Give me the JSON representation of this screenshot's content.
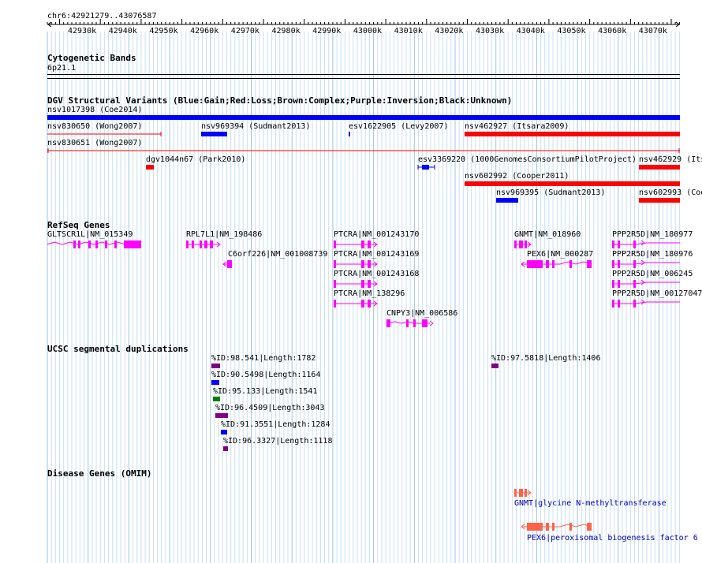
{
  "locus": "chr6:42921279..43076587",
  "ruler": {
    "ticks": [
      "42930k",
      "42940k",
      "42950k",
      "42960k",
      "42970k",
      "42980k",
      "42990k",
      "43000k",
      "43010k",
      "43020k",
      "43030k",
      "43040k",
      "43050k",
      "43060k",
      "43070k"
    ]
  },
  "tracks": {
    "cytoband": {
      "title": "Cytogenetic Bands",
      "band": "6p21.1"
    },
    "dgv": {
      "title": "DGV Structural Variants (Blue:Gain;Red:Loss;Brown:Complex;Purple:Inversion;Black:Unknown)",
      "features": [
        {
          "label": "nsv1017398 (Coe2014)",
          "color": "#0000ff"
        },
        {
          "label": "nsv830650 (Wong2007)",
          "color": "#ff0000"
        },
        {
          "label": "nsv969394 (Sudmant2013)",
          "color": "#0000ff"
        },
        {
          "label": "esv1622905 (Levy2007)",
          "color": "#0000ff"
        },
        {
          "label": "nsv462927 (Itsara2009)",
          "color": "#ff0000"
        },
        {
          "label": "nsv830651 (Wong2007)",
          "color": "#ff0000"
        },
        {
          "label": "dgv1044n67 (Park2010)",
          "color": "#ff0000"
        },
        {
          "label": "esv3369220 (1000GenomesConsortiumPilotProject)",
          "color": "#0000ff"
        },
        {
          "label": "nsv462929 (Its",
          "color": "#ff0000"
        },
        {
          "label": "nsv602992 (Cooper2011)",
          "color": "#ff0000"
        },
        {
          "label": "nsv969395 (Sudmant2013)",
          "color": "#0000ff"
        },
        {
          "label": "nsv602993 (Coo",
          "color": "#ff0000"
        }
      ]
    },
    "refseq": {
      "title": "RefSeq Genes",
      "color": "#ff00ff",
      "genes": [
        {
          "label": "GLTSCR1L|NM_015349"
        },
        {
          "label": "RPL7L1|NM_198486"
        },
        {
          "label": "C6orf226|NM_001008739"
        },
        {
          "label": "PTCRA|NM_001243170"
        },
        {
          "label": "PTCRA|NM_001243169"
        },
        {
          "label": "PTCRA|NM_001243168"
        },
        {
          "label": "PTCRA|NM_138296"
        },
        {
          "label": "CNPY3|NM_006586"
        },
        {
          "label": "GNMT|NM_018960"
        },
        {
          "label": "PEX6|NM_000287"
        },
        {
          "label": "PPP2R5D|NM_180977"
        },
        {
          "label": "PPP2R5D|NM_180976"
        },
        {
          "label": "PPP2R5D|NM_006245"
        },
        {
          "label": "PPP2R5D|NM_00127047"
        }
      ]
    },
    "segdup": {
      "title": "UCSC segmental duplications",
      "items": [
        {
          "label": "%ID:98.541|Length:1782",
          "color": "#800080"
        },
        {
          "label": "%ID:90.5498|Length:1164",
          "color": "#0000ff"
        },
        {
          "label": "%ID:95.133|Length:1541",
          "color": "#008000"
        },
        {
          "label": "%ID:96.4509|Length:3043",
          "color": "#800080"
        },
        {
          "label": "%ID:91.3551|Length:1284",
          "color": "#0000ff"
        },
        {
          "label": "%ID:96.3327|Length:1118",
          "color": "#800080"
        },
        {
          "label": "%ID:97.5818|Length:1406",
          "color": "#800080"
        }
      ]
    },
    "omim": {
      "title": "Disease Genes (OMIM)",
      "color": "#ff6347",
      "label_color": "#0000c0",
      "genes": [
        {
          "label": "GNMT|glycine N-methyltransferase"
        },
        {
          "label": "PEX6|peroxisomal biogenesis factor 6"
        }
      ]
    }
  },
  "colors": {
    "grid": "#add8e6",
    "ruler": "#000000"
  }
}
